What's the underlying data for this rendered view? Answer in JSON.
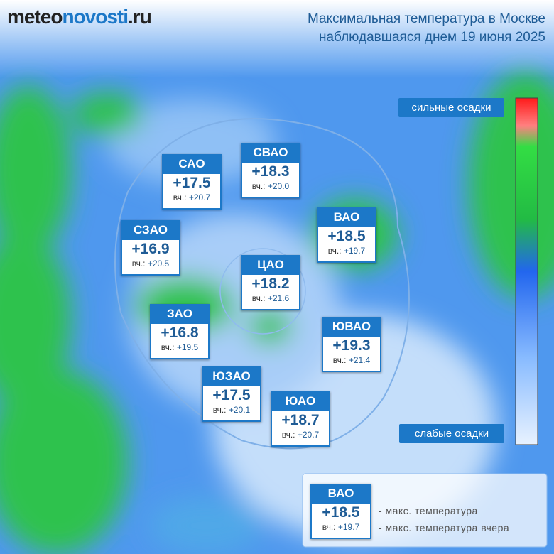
{
  "header": {
    "logo": {
      "prefix": "meteo",
      "main": "novosti",
      "suffix": ".ru"
    },
    "title_line1": "Максимальная температура в Москве",
    "title_line2": "наблюдавшаяся днем 19 июня 2025"
  },
  "yesterday_label": "вч.:",
  "districts": [
    {
      "name": "САО",
      "temp": "+17.5",
      "yesterday": "+20.7"
    },
    {
      "name": "СВАО",
      "temp": "+18.3",
      "yesterday": "+20.0"
    },
    {
      "name": "ВАО",
      "temp": "+18.5",
      "yesterday": "+19.7"
    },
    {
      "name": "СЗАО",
      "temp": "+16.9",
      "yesterday": "+20.5"
    },
    {
      "name": "ЦАО",
      "temp": "+18.2",
      "yesterday": "+21.6"
    },
    {
      "name": "ЗАО",
      "temp": "+16.8",
      "yesterday": "+19.5"
    },
    {
      "name": "ЮВАО",
      "temp": "+19.3",
      "yesterday": "+21.4"
    },
    {
      "name": "ЮЗАО",
      "temp": "+17.5",
      "yesterday": "+20.1"
    },
    {
      "name": "ЮАО",
      "temp": "+18.7",
      "yesterday": "+20.7"
    }
  ],
  "scale": {
    "top_label": "сильные осадки",
    "bottom_label": "слабые осадки"
  },
  "legend": {
    "name": "ВАО",
    "temp": "+18.5",
    "yesterday_label": "вч.:",
    "yesterday": "+19.7",
    "temp_note": "- макс. температура",
    "yesterday_note": "- макс. температура вчера"
  }
}
